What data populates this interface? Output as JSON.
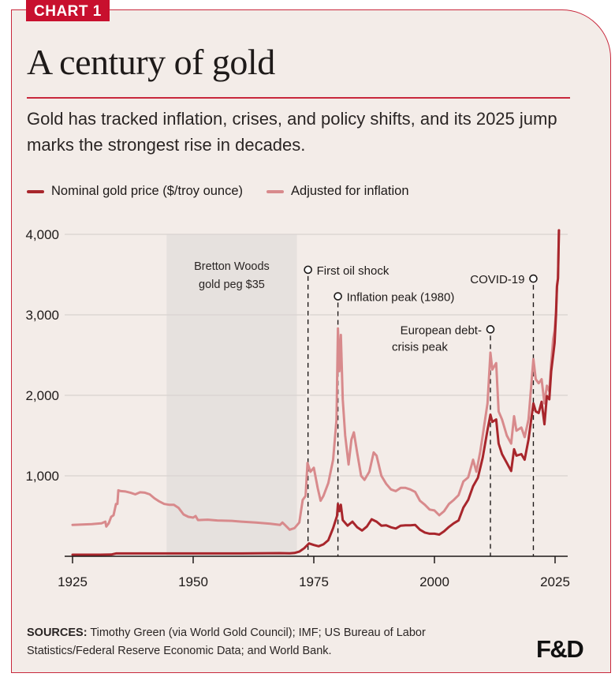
{
  "badge": "CHART 1",
  "title": "A century of gold",
  "subtitle": "Gold has tracked inflation, crises, and policy shifts, and its 2025 jump marks the strongest rise in decades.",
  "footer": {
    "sources_label": "SOURCES:",
    "sources_text": " Timothy Green (via World Gold Council); IMF; US Bureau of Labor Statistics/Federal Reserve Economic Data; and World Bank.",
    "logo": "F&D"
  },
  "colors": {
    "brand_red": "#c8102e",
    "nominal": "#a8262c",
    "real": "#d88a8c",
    "shade": "#e6e1de",
    "background": "#f3ece8"
  },
  "chart_data": {
    "type": "line",
    "title": "A century of gold",
    "xlabel": "",
    "ylabel": "",
    "xlim": [
      1923.4,
      2027.4
    ],
    "ylim": [
      0,
      4000
    ],
    "xticks": [
      1925,
      1950,
      1975,
      2000,
      2025
    ],
    "xtick_labels": [
      "1925",
      "1950",
      "1975",
      "2000",
      "2025"
    ],
    "yticks": [
      1000,
      2000,
      3000,
      4000
    ],
    "ytick_labels": [
      "1,000",
      "2,000",
      "3,000",
      "4,000"
    ],
    "grid": "horizontal",
    "legend_position": "top-left",
    "series": [
      {
        "name": "Nominal gold price ($/troy ounce)",
        "key": "nominal",
        "points": [
          [
            1925,
            20
          ],
          [
            1930,
            20
          ],
          [
            1933,
            22
          ],
          [
            1934,
            35
          ],
          [
            1940,
            35
          ],
          [
            1950,
            35
          ],
          [
            1960,
            35
          ],
          [
            1968,
            39
          ],
          [
            1970,
            36
          ],
          [
            1971,
            41
          ],
          [
            1972,
            58
          ],
          [
            1973,
            100
          ],
          [
            1974,
            160
          ],
          [
            1975,
            140
          ],
          [
            1976,
            125
          ],
          [
            1977,
            148
          ],
          [
            1978,
            200
          ],
          [
            1979,
            350
          ],
          [
            1979.8,
            500
          ],
          [
            1980.0,
            650
          ],
          [
            1980.3,
            560
          ],
          [
            1980.6,
            640
          ],
          [
            1981,
            450
          ],
          [
            1982,
            380
          ],
          [
            1983,
            430
          ],
          [
            1984,
            360
          ],
          [
            1985,
            320
          ],
          [
            1986,
            370
          ],
          [
            1987,
            460
          ],
          [
            1988,
            430
          ],
          [
            1989,
            380
          ],
          [
            1990,
            385
          ],
          [
            1991,
            360
          ],
          [
            1992,
            345
          ],
          [
            1993,
            380
          ],
          [
            1994,
            385
          ],
          [
            1995,
            385
          ],
          [
            1996,
            390
          ],
          [
            1997,
            330
          ],
          [
            1998,
            295
          ],
          [
            1999,
            280
          ],
          [
            2000,
            280
          ],
          [
            2001,
            270
          ],
          [
            2002,
            310
          ],
          [
            2003,
            365
          ],
          [
            2004,
            410
          ],
          [
            2005,
            445
          ],
          [
            2006,
            605
          ],
          [
            2007,
            700
          ],
          [
            2008,
            870
          ],
          [
            2009,
            975
          ],
          [
            2010,
            1225
          ],
          [
            2011,
            1570
          ],
          [
            2011.6,
            1760
          ],
          [
            2012,
            1670
          ],
          [
            2012.8,
            1700
          ],
          [
            2013.3,
            1400
          ],
          [
            2014,
            1270
          ],
          [
            2015,
            1160
          ],
          [
            2015.9,
            1060
          ],
          [
            2016.5,
            1330
          ],
          [
            2017,
            1250
          ],
          [
            2018,
            1270
          ],
          [
            2018.7,
            1200
          ],
          [
            2019.5,
            1450
          ],
          [
            2020.5,
            1900
          ],
          [
            2021,
            1800
          ],
          [
            2021.6,
            1780
          ],
          [
            2022.2,
            1920
          ],
          [
            2022.8,
            1640
          ],
          [
            2023.3,
            1990
          ],
          [
            2023.8,
            1950
          ],
          [
            2024.2,
            2300
          ],
          [
            2024.6,
            2500
          ],
          [
            2024.9,
            2650
          ],
          [
            2025.2,
            3000
          ],
          [
            2025.4,
            3350
          ],
          [
            2025.6,
            3450
          ],
          [
            2025.8,
            4050
          ]
        ]
      },
      {
        "name": "Adjusted for inflation",
        "key": "real",
        "points": [
          [
            1925,
            390
          ],
          [
            1927,
            395
          ],
          [
            1929,
            400
          ],
          [
            1931,
            410
          ],
          [
            1931.8,
            430
          ],
          [
            1932,
            370
          ],
          [
            1932.5,
            410
          ],
          [
            1933,
            490
          ],
          [
            1933.5,
            510
          ],
          [
            1934,
            650
          ],
          [
            1934.3,
            650
          ],
          [
            1934.5,
            820
          ],
          [
            1935,
            810
          ],
          [
            1936,
            805
          ],
          [
            1937,
            790
          ],
          [
            1938,
            770
          ],
          [
            1939,
            795
          ],
          [
            1940,
            790
          ],
          [
            1941,
            770
          ],
          [
            1942,
            720
          ],
          [
            1943,
            680
          ],
          [
            1944,
            650
          ],
          [
            1945,
            640
          ],
          [
            1946,
            640
          ],
          [
            1947,
            600
          ],
          [
            1948,
            520
          ],
          [
            1949,
            490
          ],
          [
            1950,
            480
          ],
          [
            1950.5,
            500
          ],
          [
            1951,
            450
          ],
          [
            1953,
            455
          ],
          [
            1955,
            445
          ],
          [
            1958,
            440
          ],
          [
            1960,
            430
          ],
          [
            1963,
            420
          ],
          [
            1966,
            405
          ],
          [
            1968,
            390
          ],
          [
            1968.5,
            420
          ],
          [
            1969,
            390
          ],
          [
            1970,
            330
          ],
          [
            1971,
            350
          ],
          [
            1972,
            420
          ],
          [
            1972.7,
            700
          ],
          [
            1973.3,
            750
          ],
          [
            1973.7,
            1160
          ],
          [
            1974.3,
            1050
          ],
          [
            1975,
            1100
          ],
          [
            1975.8,
            850
          ],
          [
            1976.4,
            690
          ],
          [
            1977,
            750
          ],
          [
            1978,
            910
          ],
          [
            1979,
            1200
          ],
          [
            1979.7,
            1700
          ],
          [
            1980.0,
            2830
          ],
          [
            1980.3,
            2300
          ],
          [
            1980.6,
            2750
          ],
          [
            1981,
            1950
          ],
          [
            1981.5,
            1500
          ],
          [
            1982.2,
            1140
          ],
          [
            1982.8,
            1450
          ],
          [
            1983.3,
            1540
          ],
          [
            1984,
            1280
          ],
          [
            1984.8,
            1000
          ],
          [
            1985.5,
            950
          ],
          [
            1986.5,
            1050
          ],
          [
            1987.4,
            1290
          ],
          [
            1988,
            1250
          ],
          [
            1989,
            1000
          ],
          [
            1990,
            900
          ],
          [
            1991,
            830
          ],
          [
            1992,
            810
          ],
          [
            1993,
            850
          ],
          [
            1994,
            850
          ],
          [
            1995,
            830
          ],
          [
            1996,
            800
          ],
          [
            1997,
            690
          ],
          [
            1998,
            640
          ],
          [
            1999,
            580
          ],
          [
            2000,
            570
          ],
          [
            2001,
            510
          ],
          [
            2002,
            560
          ],
          [
            2003,
            650
          ],
          [
            2004,
            700
          ],
          [
            2005,
            760
          ],
          [
            2006,
            930
          ],
          [
            2007,
            980
          ],
          [
            2008,
            1200
          ],
          [
            2008.7,
            1050
          ],
          [
            2009.5,
            1300
          ],
          [
            2010,
            1500
          ],
          [
            2011,
            1900
          ],
          [
            2011.6,
            2530
          ],
          [
            2012,
            2320
          ],
          [
            2012.8,
            2400
          ],
          [
            2013.3,
            1800
          ],
          [
            2014,
            1700
          ],
          [
            2015,
            1500
          ],
          [
            2015.9,
            1400
          ],
          [
            2016.5,
            1740
          ],
          [
            2017,
            1560
          ],
          [
            2018,
            1600
          ],
          [
            2018.7,
            1480
          ],
          [
            2019.5,
            1700
          ],
          [
            2020.5,
            2450
          ],
          [
            2021,
            2200
          ],
          [
            2021.6,
            2150
          ],
          [
            2022.2,
            2200
          ],
          [
            2022.8,
            1900
          ],
          [
            2023.3,
            2120
          ],
          [
            2023.8,
            2050
          ],
          [
            2024.2,
            2400
          ],
          [
            2024.6,
            2700
          ],
          [
            2024.9,
            2800
          ],
          [
            2025.2,
            3050
          ],
          [
            2025.4,
            3370
          ],
          [
            2025.6,
            3460
          ],
          [
            2025.8,
            4050
          ]
        ]
      }
    ],
    "shaded_regions": [
      {
        "label_lines": [
          "Bretton Woods",
          "gold peg $35"
        ],
        "x_start": 1944.5,
        "x_end": 1971.5
      }
    ],
    "annotations": [
      {
        "key": "oil-shock",
        "text_lines": [
          "First oil shock"
        ],
        "x": 1973.8,
        "marker_value": 3560,
        "text_side": "right"
      },
      {
        "key": "inflation-peak",
        "text_lines": [
          "Inflation peak (1980)"
        ],
        "x": 1980.0,
        "marker_value": 3230,
        "text_side": "right"
      },
      {
        "key": "euro-debt",
        "text_lines": [
          "European debt-",
          "crisis peak"
        ],
        "x": 2011.6,
        "marker_value": 2820,
        "text_side": "left"
      },
      {
        "key": "covid",
        "text_lines": [
          "COVID-19"
        ],
        "x": 2020.5,
        "marker_value": 3450,
        "text_side": "left"
      }
    ]
  }
}
